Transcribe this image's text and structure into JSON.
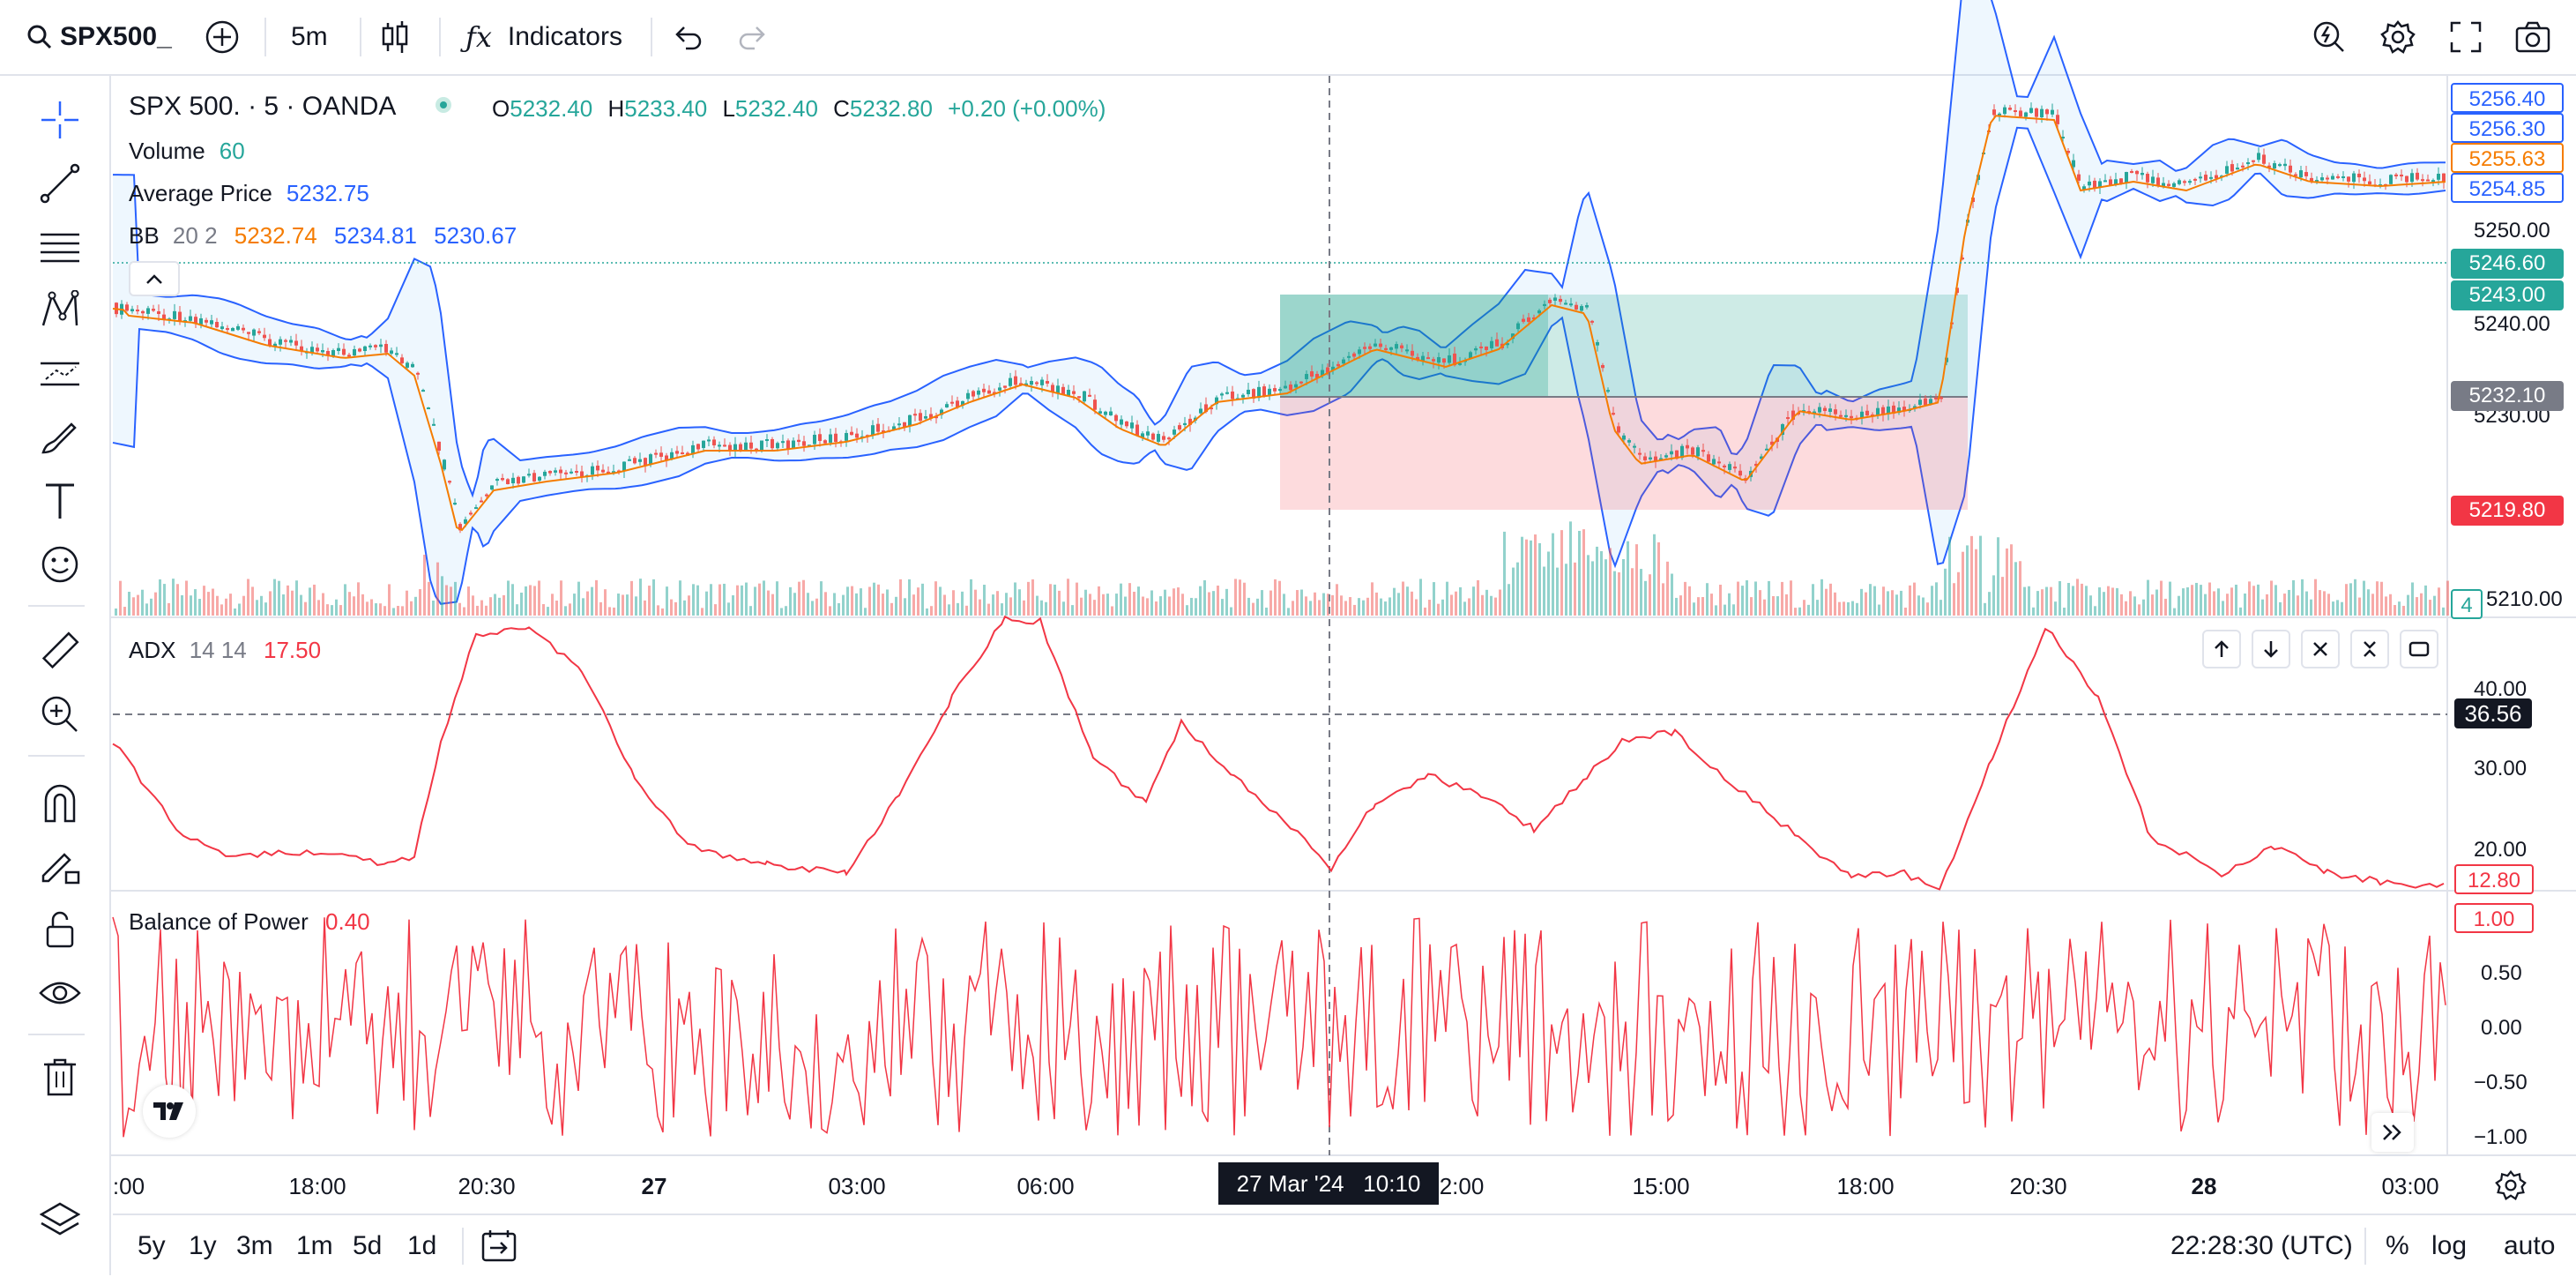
{
  "toolbar": {
    "symbol": "SPX500_",
    "interval": "5m",
    "indicators_label": "Indicators"
  },
  "legend": {
    "title": "SPX 500. · 5 · OANDA",
    "open_label": "O",
    "open": "5232.40",
    "high_label": "H",
    "high": "5233.40",
    "low_label": "L",
    "low": "5232.40",
    "close_label": "C",
    "close": "5232.80",
    "change": "+0.20 (+0.00%)",
    "volume_label": "Volume",
    "volume_value": "60",
    "avgprice_label": "Average Price",
    "avgprice_value": "5232.75",
    "bb_label": "BB",
    "bb_params": "20 2",
    "bb_basis": "5232.74",
    "bb_upper": "5234.81",
    "bb_lower": "5230.67",
    "adx_label": "ADX",
    "adx_params": "14 14",
    "adx_value": "17.50",
    "bop_label": "Balance of Power",
    "bop_value": "0.40"
  },
  "price_scale": {
    "ticks": [
      "5250.00",
      "5240.00",
      "5230.00",
      "5210.00"
    ],
    "tags": [
      {
        "text": "5256.40",
        "kind": "outline-blue"
      },
      {
        "text": "5256.30",
        "kind": "outline-blue"
      },
      {
        "text": "5255.63",
        "kind": "outline-orange"
      },
      {
        "text": "5254.85",
        "kind": "outline-blue"
      },
      {
        "text": "5246.60",
        "kind": "fill-green"
      },
      {
        "text": "5243.00",
        "kind": "fill-green"
      },
      {
        "text": "5232.10",
        "kind": "fill-gray"
      },
      {
        "text": "5219.80",
        "kind": "fill-red"
      },
      {
        "text": "4",
        "kind": "outline-green"
      }
    ]
  },
  "adx_scale": {
    "ticks": [
      "40.00",
      "30.00",
      "20.00"
    ],
    "crosshair_tag": "36.56",
    "value_tag": "12.80"
  },
  "bop_scale": {
    "ticks": [
      "0.50",
      "0.00",
      "−0.50",
      "−1.00"
    ],
    "value_tag": "1.00"
  },
  "time_axis": {
    "labels": [
      ":00",
      "18:00",
      "20:30",
      "27",
      "03:00",
      "06:00",
      "2:00",
      "15:00",
      "18:00",
      "20:30",
      "28",
      "03:00"
    ],
    "crosshair": "27 Mar '24   10:10"
  },
  "bottom_bar": {
    "ranges": [
      "5y",
      "1y",
      "3m",
      "1m",
      "5d",
      "1d"
    ],
    "clock": "22:28:30 (UTC)",
    "percent": "%",
    "log": "log",
    "auto": "auto"
  },
  "colors": {
    "up": "#26a69a",
    "down": "#ef5350",
    "bb": "#2962ff",
    "avg": "#f57c00",
    "adx": "#f23645",
    "accent": "#2962ff"
  }
}
